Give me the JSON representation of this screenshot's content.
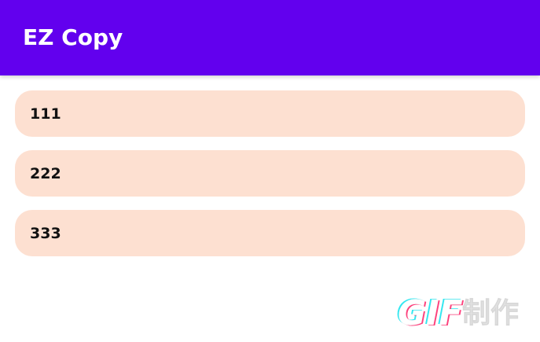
{
  "app_bar": {
    "title": "EZ Copy",
    "color": "#6200ee"
  },
  "list": {
    "item_color": "#fde0d1",
    "items": [
      {
        "label": "111"
      },
      {
        "label": "222"
      },
      {
        "label": "333"
      }
    ]
  },
  "watermark": {
    "text": "GIF制作"
  }
}
